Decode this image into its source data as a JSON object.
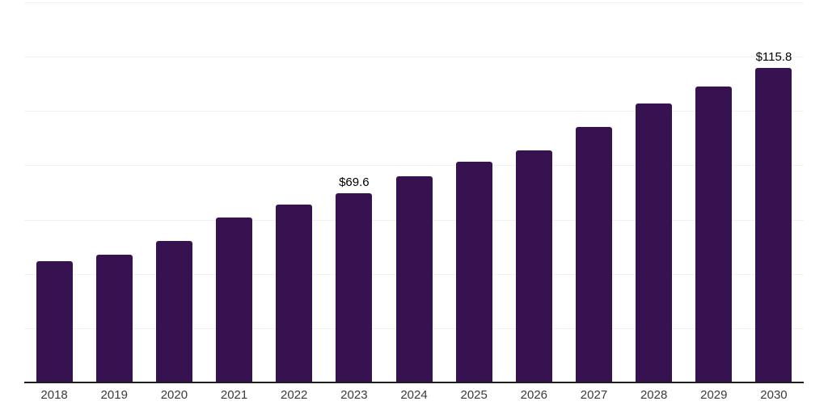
{
  "chart_data": {
    "type": "bar",
    "categories": [
      "2018",
      "2019",
      "2020",
      "2021",
      "2022",
      "2023",
      "2024",
      "2025",
      "2026",
      "2027",
      "2028",
      "2029",
      "2030"
    ],
    "values": [
      44.8,
      47.1,
      52.2,
      60.8,
      65.5,
      69.6,
      75.9,
      81.2,
      85.4,
      94.0,
      102.9,
      109.1,
      115.8
    ],
    "point_labels": [
      "",
      "",
      "",
      "",
      "",
      "$69.6",
      "",
      "",
      "",
      "",
      "",
      "",
      "$115.8"
    ],
    "title": "",
    "xlabel": "",
    "ylabel": "",
    "ylim": [
      0,
      140
    ],
    "gridline_step": 20,
    "grid": true,
    "legend": "none",
    "colors": {
      "bar": "#371250",
      "axis_line": "#1e1e1e",
      "gridline": "#f1f1f1",
      "value_label": "#000000",
      "tick_label": "#3a3a3a",
      "background": "#ffffff"
    }
  }
}
